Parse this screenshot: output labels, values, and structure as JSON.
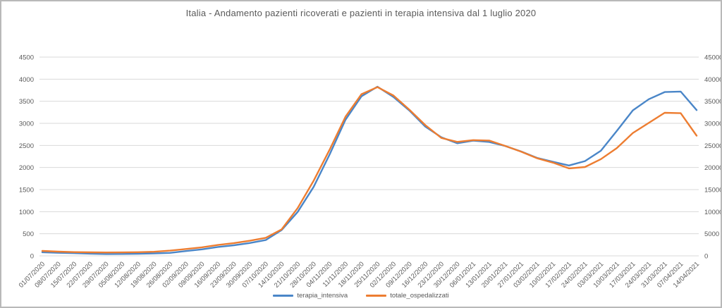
{
  "chart": {
    "title": "Italia - Andamento pazienti ricoverati e pazienti in terapia intensiva dal 1 luglio 2020",
    "colors": {
      "terapia_intensiva": "#4a86c8",
      "totale_ospedalizzati": "#ed7d31",
      "gridline": "#d9d9d9",
      "axis_text": "#595959",
      "frame_border": "#b9b9b9",
      "background": "#ffffff"
    }
  },
  "chart_data": {
    "type": "line",
    "title": "Italia - Andamento pazienti ricoverati e pazienti in terapia intensiva dal 1 luglio 2020",
    "grid": "horizontal",
    "legend_position": "bottom",
    "categories": [
      "01/07/2020",
      "08/07/2020",
      "15/07/2020",
      "22/07/2020",
      "29/07/2020",
      "05/08/2020",
      "12/08/2020",
      "19/08/2020",
      "26/08/2020",
      "02/09/2020",
      "09/09/2020",
      "16/09/2020",
      "23/09/2020",
      "30/09/2020",
      "07/10/2020",
      "14/10/2020",
      "21/10/2020",
      "28/10/2020",
      "04/11/2020",
      "11/11/2020",
      "18/11/2020",
      "25/11/2020",
      "02/12/2020",
      "09/12/2020",
      "16/12/2020",
      "23/12/2020",
      "30/12/2020",
      "06/01/2021",
      "13/01/2021",
      "20/01/2021",
      "27/01/2021",
      "03/02/2021",
      "10/02/2021",
      "17/02/2021",
      "24/02/2021",
      "03/03/2021",
      "10/03/2021",
      "17/03/2021",
      "24/03/2021",
      "31/03/2021",
      "07/04/2021",
      "14/04/2021"
    ],
    "left_axis": {
      "min": 0,
      "max": 4500,
      "step": 500,
      "tick_labels": [
        "4500",
        "4000",
        "3500",
        "3000",
        "2500",
        "2000",
        "1500",
        "1000",
        "500",
        "0"
      ]
    },
    "right_axis": {
      "min": 0,
      "max": 45000,
      "step": 5000,
      "tick_labels": [
        "45000",
        "40000",
        "35000",
        "30000",
        "25000",
        "20000",
        "15000",
        "10000",
        "5000",
        "0"
      ]
    },
    "series": [
      {
        "name": "terapia_intensiva",
        "axis": "left",
        "color": "#4a86c8",
        "values": [
          82,
          69,
          60,
          49,
          41,
          43,
          48,
          56,
          67,
          109,
          147,
          201,
          239,
          291,
          358,
          586,
          992,
          1560,
          2292,
          3081,
          3612,
          3830,
          3597,
          3291,
          2926,
          2684,
          2549,
          2608,
          2579,
          2487,
          2363,
          2218,
          2128,
          2045,
          2144,
          2380,
          2827,
          3294,
          3546,
          3709,
          3720,
          3300
        ]
      },
      {
        "name": "totale_ospedalizzati",
        "axis": "right",
        "color": "#ed7d31",
        "values": [
          1115,
          955,
          850,
          790,
          760,
          780,
          830,
          920,
          1180,
          1540,
          1930,
          2450,
          2890,
          3410,
          4090,
          6000,
          10800,
          17000,
          24000,
          31500,
          36600,
          38200,
          36300,
          33100,
          29600,
          26700,
          25800,
          26200,
          26100,
          24900,
          23600,
          22100,
          21100,
          19800,
          20100,
          21900,
          24400,
          27800,
          30100,
          32400,
          32300,
          27200
        ]
      }
    ]
  }
}
